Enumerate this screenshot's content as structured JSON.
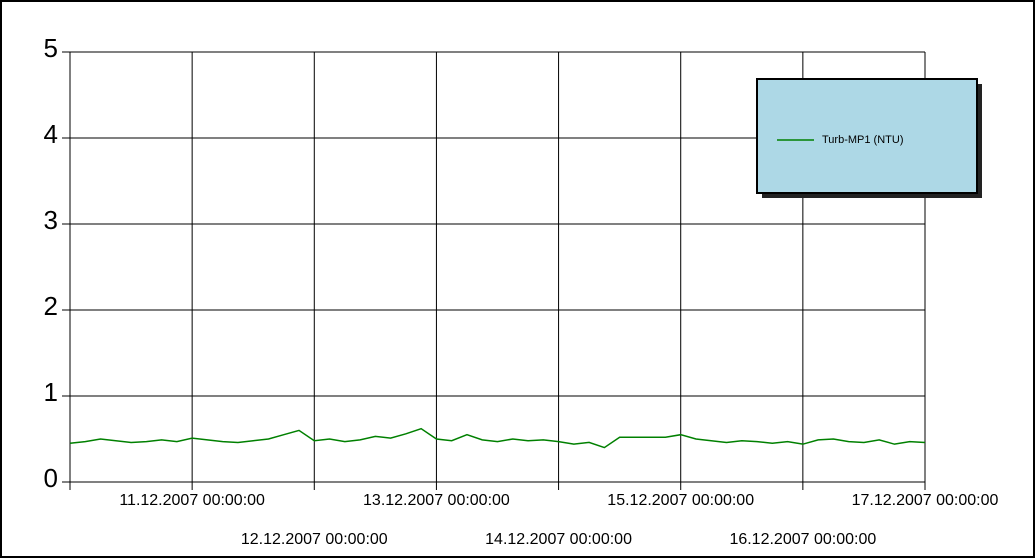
{
  "chart_data": {
    "type": "line",
    "x": [
      "10.12.2007 00:00:00",
      "10.12.2007 03:00:00",
      "10.12.2007 06:00:00",
      "10.12.2007 09:00:00",
      "10.12.2007 12:00:00",
      "10.12.2007 15:00:00",
      "10.12.2007 18:00:00",
      "10.12.2007 21:00:00",
      "11.12.2007 00:00:00",
      "11.12.2007 03:00:00",
      "11.12.2007 06:00:00",
      "11.12.2007 09:00:00",
      "11.12.2007 12:00:00",
      "11.12.2007 15:00:00",
      "11.12.2007 18:00:00",
      "11.12.2007 21:00:00",
      "12.12.2007 00:00:00",
      "12.12.2007 03:00:00",
      "12.12.2007 06:00:00",
      "12.12.2007 09:00:00",
      "12.12.2007 12:00:00",
      "12.12.2007 15:00:00",
      "12.12.2007 18:00:00",
      "12.12.2007 21:00:00",
      "13.12.2007 00:00:00",
      "13.12.2007 03:00:00",
      "13.12.2007 06:00:00",
      "13.12.2007 09:00:00",
      "13.12.2007 12:00:00",
      "13.12.2007 15:00:00",
      "13.12.2007 18:00:00",
      "13.12.2007 21:00:00",
      "14.12.2007 00:00:00",
      "14.12.2007 03:00:00",
      "14.12.2007 06:00:00",
      "14.12.2007 09:00:00",
      "14.12.2007 12:00:00",
      "14.12.2007 15:00:00",
      "14.12.2007 18:00:00",
      "14.12.2007 21:00:00",
      "15.12.2007 00:00:00",
      "15.12.2007 03:00:00",
      "15.12.2007 06:00:00",
      "15.12.2007 09:00:00",
      "15.12.2007 12:00:00",
      "15.12.2007 15:00:00",
      "15.12.2007 18:00:00",
      "15.12.2007 21:00:00",
      "16.12.2007 00:00:00",
      "16.12.2007 03:00:00",
      "16.12.2007 06:00:00",
      "16.12.2007 09:00:00",
      "16.12.2007 12:00:00",
      "16.12.2007 15:00:00",
      "16.12.2007 18:00:00",
      "16.12.2007 21:00:00",
      "17.12.2007 00:00:00"
    ],
    "series": [
      {
        "name": "Turb-MP1 (NTU)",
        "color": "#008000",
        "values": [
          0.45,
          0.47,
          0.5,
          0.48,
          0.46,
          0.47,
          0.49,
          0.47,
          0.51,
          0.49,
          0.47,
          0.46,
          0.48,
          0.5,
          0.55,
          0.6,
          0.48,
          0.5,
          0.47,
          0.49,
          0.53,
          0.51,
          0.56,
          0.62,
          0.5,
          0.48,
          0.55,
          0.49,
          0.47,
          0.5,
          0.48,
          0.49,
          0.47,
          0.44,
          0.46,
          0.4,
          0.52,
          0.52,
          0.52,
          0.52,
          0.55,
          0.5,
          0.48,
          0.46,
          0.48,
          0.47,
          0.45,
          0.47,
          0.44,
          0.49,
          0.5,
          0.47,
          0.46,
          0.49,
          0.44,
          0.47,
          0.46
        ]
      }
    ],
    "xlim": [
      "10.12.2007 00:00:00",
      "17.12.2007 00:00:00"
    ],
    "xticks": [
      "11.12.2007 00:00:00",
      "12.12.2007 00:00:00",
      "13.12.2007 00:00:00",
      "14.12.2007 00:00:00",
      "15.12.2007 00:00:00",
      "16.12.2007 00:00:00",
      "17.12.2007 00:00:00"
    ],
    "ylim": [
      0,
      5
    ],
    "yticks": [
      0,
      1,
      2,
      3,
      4,
      5
    ],
    "grid": true,
    "legend": "upper right"
  }
}
